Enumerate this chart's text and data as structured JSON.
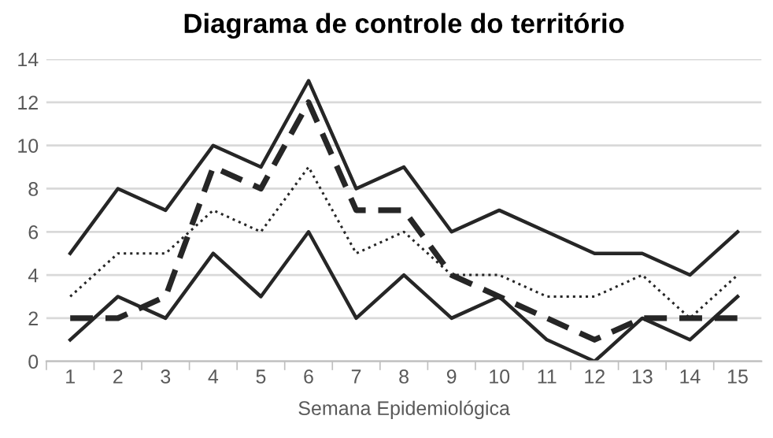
{
  "chart_data": {
    "type": "line",
    "title": "Diagrama de controle do território",
    "xlabel": "Semana Epidemiológica",
    "categories": [
      "1",
      "2",
      "3",
      "4",
      "5",
      "6",
      "7",
      "8",
      "9",
      "10",
      "11",
      "12",
      "13",
      "14",
      "15"
    ],
    "ylim": [
      0,
      14
    ],
    "yticks": [
      0,
      2,
      4,
      6,
      8,
      10,
      12,
      14
    ],
    "grid": "y",
    "marker": "none",
    "series": [
      {
        "color": "#262626",
        "line_style": "solid",
        "values": [
          5,
          8,
          7,
          10,
          9,
          13,
          8,
          9,
          6,
          7,
          6,
          5,
          5,
          4,
          6
        ]
      },
      {
        "color": "#262626",
        "line_style": "solid",
        "values": [
          1,
          3,
          2,
          5,
          3,
          6,
          2,
          4,
          2,
          3,
          1,
          0,
          2,
          1,
          3
        ]
      },
      {
        "color": "#262626",
        "line_style": "dotted",
        "values": [
          3,
          5,
          5,
          7,
          6,
          9,
          5,
          6,
          4,
          4,
          3,
          3,
          4,
          2,
          4
        ]
      },
      {
        "color": "#262626",
        "line_style": "dashed",
        "values": [
          2,
          2,
          3,
          9,
          8,
          12,
          7,
          7,
          4,
          3,
          2,
          1,
          2,
          2,
          2
        ]
      }
    ]
  }
}
